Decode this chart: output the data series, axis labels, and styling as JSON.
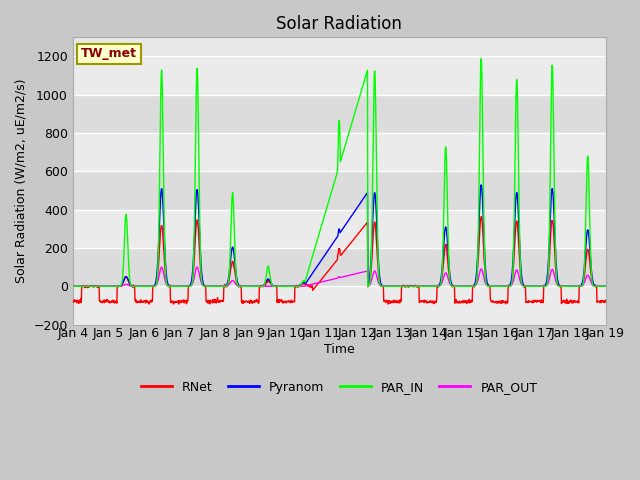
{
  "title": "Solar Radiation",
  "ylabel": "Solar Radiation (W/m2, uE/m2/s)",
  "xlabel": "Time",
  "ylim": [
    -200,
    1300
  ],
  "xlim": [
    0,
    15
  ],
  "x_tick_labels": [
    "Jan 4",
    "Jan 5",
    "Jan 6",
    "Jan 7",
    "Jan 8",
    "Jan 9",
    "Jan 10",
    "Jan 11",
    "Jan 12",
    "Jan 13",
    "Jan 14",
    "Jan 15",
    "Jan 16",
    "Jan 17",
    "Jan 18",
    "Jan 19"
  ],
  "station_label": "TW_met",
  "station_label_color": "#8B0000",
  "station_box_facecolor": "#FFFFCC",
  "station_box_edgecolor": "#999900",
  "line_colors": {
    "RNet": "#FF0000",
    "Pyranom": "#0000FF",
    "PAR_IN": "#00FF00",
    "PAR_OUT": "#FF00FF"
  },
  "legend_labels": [
    "RNet",
    "Pyranom",
    "PAR_IN",
    "PAR_OUT"
  ],
  "fig_facecolor": "#C8C8C8",
  "axes_facecolor": "#E8E8E8",
  "title_fontsize": 12,
  "band_color_light": "#EBEBEB",
  "band_color_dark": "#DCDCDC"
}
